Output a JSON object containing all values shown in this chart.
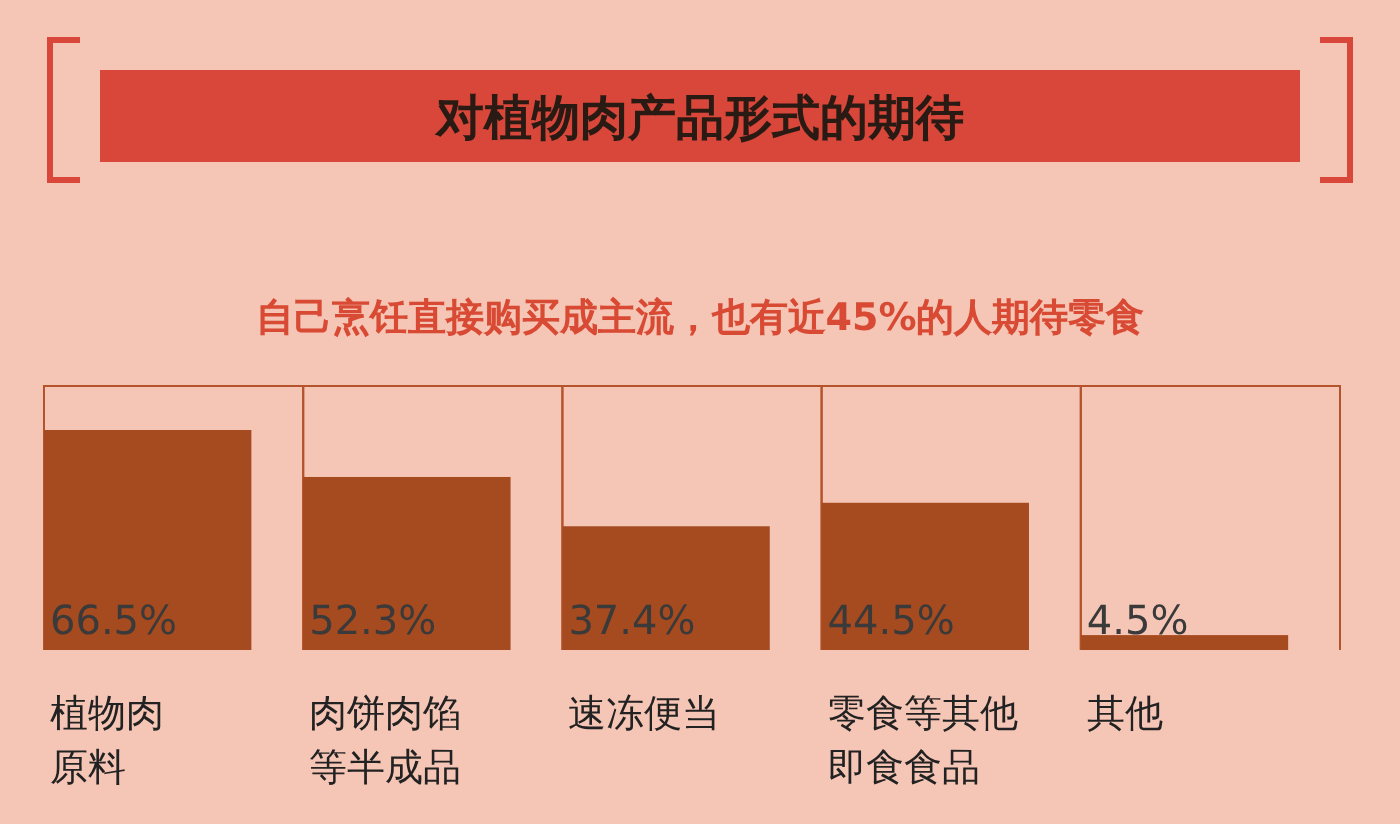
{
  "chart_data": {
    "type": "bar",
    "title": "对植物肉产品形式的期待",
    "subtitle": "自己烹饪直接购买成主流，也有近45%的人期待零食",
    "categories": [
      "植物肉原料",
      "肉饼肉馅等半成品",
      "速冻便当",
      "零食等其他即食食品",
      "其他"
    ],
    "values": [
      66.5,
      52.3,
      37.4,
      44.5,
      4.5
    ],
    "value_labels": [
      "66.5%",
      "52.3%",
      "37.4%",
      "44.5%",
      "4.5%"
    ],
    "color": "#a64a1f"
  }
}
